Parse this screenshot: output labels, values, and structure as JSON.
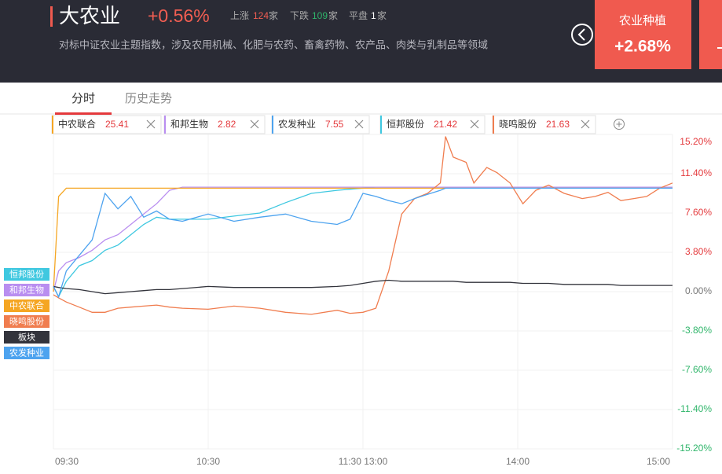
{
  "header": {
    "title": "大农业",
    "change": "+0.56%",
    "stats": [
      {
        "label": "上涨",
        "count": 124,
        "unit": "家"
      },
      {
        "label": "下跌",
        "count": 109,
        "unit": "家"
      },
      {
        "label": "平盘",
        "count": 1,
        "unit": "家"
      }
    ],
    "description": "对标中证农业主题指数，涉及农用机械、化肥与农药、畜禽药物、农产品、肉类与乳制品等领域",
    "card": {
      "name": "农业种植",
      "change": "+2.68%"
    }
  },
  "tabs": [
    "分时",
    "历史走势"
  ],
  "chips": [
    {
      "name": "中农联合",
      "price": 25.41,
      "color": "#f5a623"
    },
    {
      "name": "和邦生物",
      "price": 2.82,
      "color": "#b98ef0"
    },
    {
      "name": "农发种业",
      "price": 7.55,
      "color": "#4da3ef"
    },
    {
      "name": "恒邦股份",
      "price": 21.42,
      "color": "#3fc8e0"
    },
    {
      "name": "晓鸣股份",
      "price": 21.63,
      "color": "#f07d4f"
    }
  ],
  "chart_data": {
    "type": "line",
    "x": [
      0,
      2,
      5,
      10,
      15,
      20,
      25,
      30,
      35,
      40,
      45,
      50,
      60,
      70,
      80,
      90,
      100,
      110,
      115,
      120,
      125,
      130,
      135,
      140,
      145,
      150,
      152,
      155,
      160,
      163,
      168,
      172,
      177,
      182,
      187,
      192,
      198,
      205,
      210,
      215,
      220,
      225,
      230,
      235,
      240
    ],
    "xlim": [
      0,
      240
    ],
    "xticks": [
      {
        "value": 0,
        "label": "09:30"
      },
      {
        "value": 60,
        "label": "10:30"
      },
      {
        "value": 120,
        "label": "11:30 13:00"
      },
      {
        "value": 180,
        "label": "14:00"
      },
      {
        "value": 240,
        "label": "15:00"
      }
    ],
    "ylim": [
      -15.2,
      15.2
    ],
    "yticks": [
      {
        "value": 15.2,
        "label": "15.20%"
      },
      {
        "value": 11.4,
        "label": "11.40%"
      },
      {
        "value": 7.6,
        "label": "7.60%"
      },
      {
        "value": 3.8,
        "label": "3.80%"
      },
      {
        "value": 0,
        "label": "0.00%"
      },
      {
        "value": -3.8,
        "label": "-3.80%"
      },
      {
        "value": -7.6,
        "label": "-7.60%"
      },
      {
        "value": -11.4,
        "label": "-11.40%"
      },
      {
        "value": -15.2,
        "label": "-15.20%"
      }
    ],
    "grid": true,
    "series": [
      {
        "name": "恒邦股份",
        "color": "#3fc8e0",
        "values": [
          0.5,
          -0.5,
          1,
          2.5,
          3,
          4,
          4.5,
          5.5,
          6.5,
          7.2,
          7,
          7,
          7,
          7.3,
          7.6,
          8.6,
          9.5,
          9.8,
          9.9,
          10,
          10.1,
          10.1,
          10.1,
          10.1,
          10.1,
          10.1,
          10.1,
          10.1,
          10.1,
          10.1,
          10.1,
          10.1,
          10.1,
          10.1,
          10.1,
          10.1,
          10.1,
          10.1,
          10.1,
          10.1,
          10.1,
          10.1,
          10.1,
          10.1,
          10.1
        ]
      },
      {
        "name": "和邦生物",
        "color": "#b98ef0",
        "values": [
          0,
          2,
          2.8,
          3.3,
          4,
          5,
          5.5,
          6.5,
          7.5,
          8.5,
          9.8,
          10.1,
          10.1,
          10.1,
          10.1,
          10.1,
          10.1,
          10.1,
          10.1,
          10.1,
          10.1,
          10.1,
          10.1,
          10.1,
          10.1,
          10.1,
          10.1,
          10.1,
          10.1,
          10.1,
          10.1,
          10.1,
          10.1,
          10.1,
          10.1,
          10.1,
          10.1,
          10.1,
          10.1,
          10.1,
          10.1,
          10.1,
          10.1,
          10.1,
          10.1
        ]
      },
      {
        "name": "中农联合",
        "color": "#f5a623",
        "values": [
          0,
          9.2,
          10,
          10,
          10,
          10,
          10,
          10,
          10,
          10,
          10,
          10,
          10,
          10,
          10,
          10,
          10,
          10,
          10,
          10,
          10,
          10,
          10,
          10,
          10,
          10,
          10,
          10,
          10,
          10,
          10,
          10,
          10,
          10,
          10,
          10,
          10,
          10,
          10,
          10,
          10,
          10,
          10,
          10,
          10
        ]
      },
      {
        "name": "晓鸣股份",
        "color": "#f07d4f",
        "values": [
          -0.3,
          -0.6,
          -1,
          -1.5,
          -2,
          -2,
          -1.6,
          -1.5,
          -1.4,
          -1.3,
          -1.5,
          -1.6,
          -1.7,
          -1.4,
          -1.6,
          -2,
          -2.2,
          -1.8,
          -2.1,
          -2,
          -1.6,
          2,
          7.5,
          9,
          9.5,
          10.5,
          15,
          13,
          12.5,
          10.5,
          12,
          11.5,
          10.5,
          8.5,
          9.8,
          10.3,
          9.5,
          9,
          9.2,
          9.6,
          8.8,
          9,
          9.2,
          10,
          10.5
        ]
      },
      {
        "name": "板块",
        "color": "#33343c",
        "values": [
          0.5,
          0.4,
          0.3,
          0.2,
          0,
          -0.2,
          -0.1,
          0,
          0.1,
          0.2,
          0.2,
          0.3,
          0.5,
          0.4,
          0.4,
          0.4,
          0.4,
          0.5,
          0.6,
          0.8,
          1,
          1.1,
          1,
          1,
          1,
          1,
          1,
          1,
          0.9,
          0.9,
          0.9,
          0.9,
          0.9,
          0.8,
          0.8,
          0.8,
          0.7,
          0.7,
          0.7,
          0.7,
          0.6,
          0.6,
          0.6,
          0.6,
          0.6
        ]
      },
      {
        "name": "农发种业",
        "color": "#4da3ef",
        "values": [
          0.5,
          -0.5,
          2,
          3.5,
          5,
          9.5,
          8,
          9.2,
          7.2,
          7.8,
          7,
          6.8,
          7.5,
          6.8,
          7.2,
          7.5,
          6.8,
          6.5,
          7,
          9.5,
          9.2,
          8.8,
          8.5,
          9,
          9.4,
          9.8,
          10,
          10,
          10,
          10,
          10,
          10,
          10,
          10,
          10,
          10,
          10,
          10,
          10,
          10,
          10,
          10,
          10,
          10,
          10
        ]
      }
    ]
  }
}
